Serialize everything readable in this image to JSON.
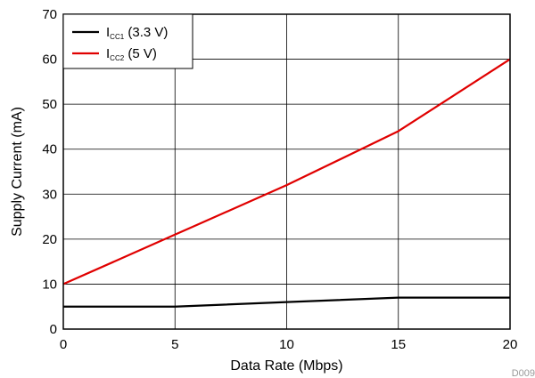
{
  "chart_data": {
    "type": "line",
    "title": "",
    "xlabel": "Data Rate (Mbps)",
    "ylabel": "Supply Current (mA)",
    "xlim": [
      0,
      20
    ],
    "ylim": [
      0,
      70
    ],
    "xticks": [
      0,
      5,
      10,
      15,
      20
    ],
    "yticks": [
      0,
      10,
      20,
      30,
      40,
      50,
      60,
      70
    ],
    "grid": true,
    "legend_position": "top-left",
    "figure_id": "D009",
    "series": [
      {
        "label_main": "I",
        "label_sub": "CC1",
        "label_rest": " (3.3 V)",
        "color": "#000000",
        "x": [
          0,
          5,
          10,
          15,
          20
        ],
        "y": [
          5,
          5,
          6,
          7,
          7
        ]
      },
      {
        "label_main": "I",
        "label_sub": "CC2",
        "label_rest": " (5 V)",
        "color": "#e00000",
        "x": [
          0,
          5,
          10,
          15,
          20
        ],
        "y": [
          10,
          21,
          32,
          44,
          60
        ]
      }
    ]
  }
}
